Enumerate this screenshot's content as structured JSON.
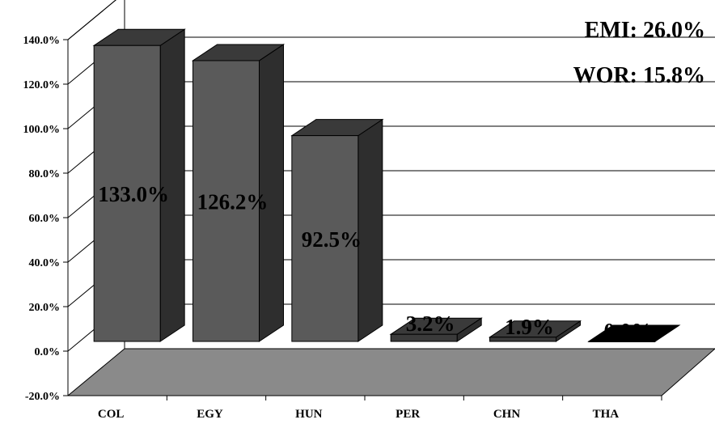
{
  "chart_data": {
    "type": "bar",
    "categories": [
      "COL",
      "EGY",
      "HUN",
      "PER",
      "CHN",
      "THA"
    ],
    "values": [
      133.0,
      126.2,
      92.5,
      3.2,
      1.9,
      0.0
    ],
    "data_labels": [
      "133.0%",
      "126.2%",
      "92.5%",
      "3.2%",
      "1.9%",
      "0.0%"
    ],
    "ylim": [
      -20,
      140
    ],
    "yticks": [
      140,
      120,
      100,
      80,
      60,
      40,
      20,
      0,
      -20
    ],
    "ytick_labels": [
      "140.0%",
      "120.0%",
      "100.0%",
      "80.0%",
      "60.0%",
      "40.0%",
      "20.0%",
      "0.0%",
      "-20.0%"
    ],
    "grid": true,
    "three_d": true,
    "bar_colors": [
      "#5a5a5a",
      "#5a5a5a",
      "#5a5a5a",
      "#3a3a3a",
      "#3a3a3a",
      "#000000"
    ],
    "annotations": [
      "EMI: 26.0%",
      "WOR: 15.8%"
    ]
  }
}
